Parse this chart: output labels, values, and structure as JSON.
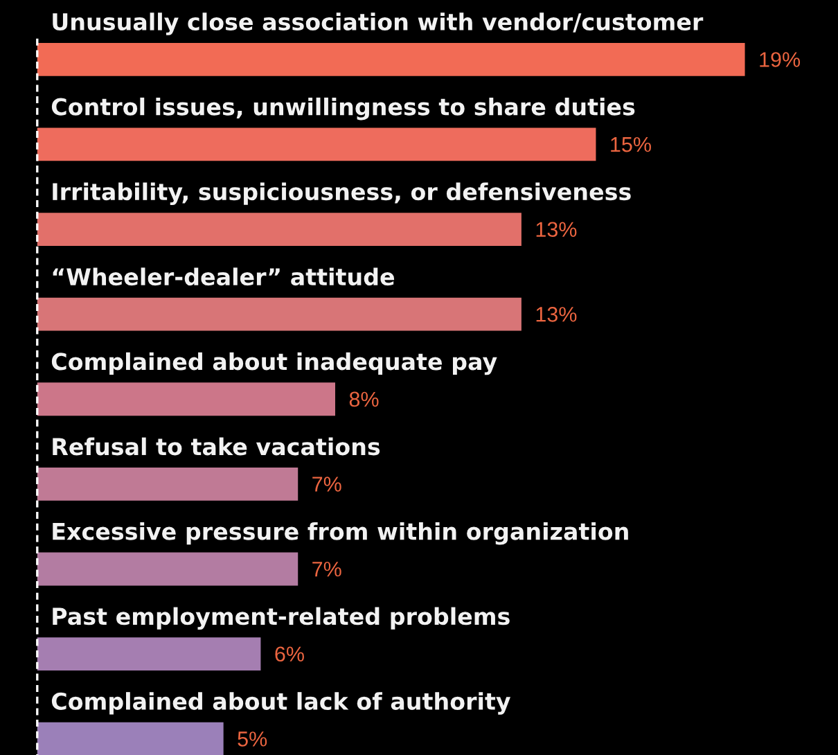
{
  "chart_data": {
    "type": "bar",
    "orientation": "horizontal",
    "categories": [
      "Unusually close association with vendor/customer",
      "Control issues, unwillingness to share duties",
      "Irritability, suspiciousness, or defensiveness",
      "“Wheeler-dealer” attitude",
      "Complained about inadequate pay",
      "Refusal to take vacations",
      "Excessive pressure from within organization",
      "Past employment-related problems",
      "Complained about lack of authority"
    ],
    "values": [
      19,
      15,
      13,
      13,
      8,
      7,
      7,
      6,
      5
    ],
    "colors": [
      "#f26b55",
      "#ee6c5d",
      "#e2706a",
      "#d87577",
      "#cc7689",
      "#c07a95",
      "#b37ca2",
      "#a57eb1",
      "#9b80b9"
    ],
    "value_labels": [
      "19%",
      "15%",
      "13%",
      "13%",
      "8%",
      "7%",
      "7%",
      "6%",
      "5%"
    ],
    "xlim": [
      -1.0,
      21.5
    ],
    "ref_lines": [
      {
        "axis": "x",
        "value": 0,
        "line_style": "dashed",
        "color": "#ffffff"
      }
    ],
    "tick_labels": "y"
  }
}
